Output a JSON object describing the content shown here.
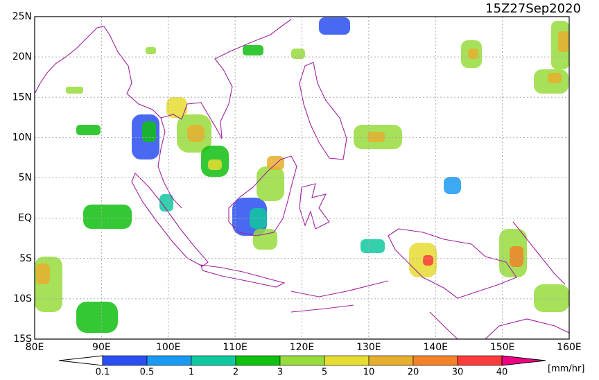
{
  "map": {
    "title": "15Z27Sep2020",
    "lonlim": [
      80,
      160
    ],
    "latlim": [
      -15,
      25
    ],
    "lon_ticks": [
      {
        "value": 80,
        "label": "80E"
      },
      {
        "value": 90,
        "label": "90E"
      },
      {
        "value": 100,
        "label": "100E"
      },
      {
        "value": 110,
        "label": "110E"
      },
      {
        "value": 120,
        "label": "120E"
      },
      {
        "value": 130,
        "label": "130E"
      },
      {
        "value": 140,
        "label": "140E"
      },
      {
        "value": 150,
        "label": "150E"
      },
      {
        "value": 160,
        "label": "160E"
      }
    ],
    "lat_ticks": [
      {
        "value": 25,
        "label": "25N"
      },
      {
        "value": 20,
        "label": "20N"
      },
      {
        "value": 15,
        "label": "15N"
      },
      {
        "value": 10,
        "label": "10N"
      },
      {
        "value": 5,
        "label": "5N"
      },
      {
        "value": 0,
        "label": "EQ"
      },
      {
        "value": -5,
        "label": "5S"
      },
      {
        "value": -10,
        "label": "10S"
      },
      {
        "value": -15,
        "label": "15S"
      }
    ],
    "grid": true,
    "colorbar": {
      "levels": [
        0.1,
        0.5,
        1,
        2,
        3,
        5,
        10,
        20,
        30,
        40
      ],
      "colors": [
        "#ffffff",
        "#2a4ff0",
        "#1a9af0",
        "#10c8a0",
        "#10c010",
        "#96dc3c",
        "#e6dc32",
        "#e6af2d",
        "#f08228",
        "#fa3c3c",
        "#f00082"
      ],
      "unit": "[mm/hr]"
    }
  }
}
